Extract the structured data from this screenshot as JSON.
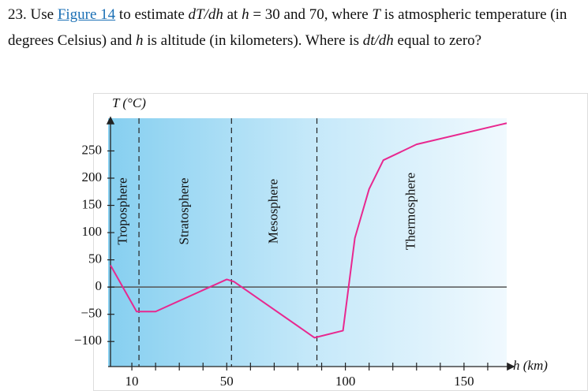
{
  "question": [
    {
      "kind": "text",
      "text": "23. Use "
    },
    {
      "kind": "link",
      "text": "Figure 14"
    },
    {
      "kind": "text",
      "text": " to estimate "
    },
    {
      "kind": "math",
      "text": "dT/dh"
    },
    {
      "kind": "text",
      "text": " at "
    },
    {
      "kind": "math",
      "text": "h"
    },
    {
      "kind": "text",
      "text": " = 30 and 70, where "
    },
    {
      "kind": "math",
      "text": "T"
    },
    {
      "kind": "text",
      "text": " is atmospheric temperature (in degrees Celsius) and "
    },
    {
      "kind": "math",
      "text": "h"
    },
    {
      "kind": "text",
      "text": " is altitude (in kilometers). Where is "
    },
    {
      "kind": "math",
      "text": "dt/dh"
    },
    {
      "kind": "text",
      "text": " equal to zero?"
    }
  ],
  "chart_data": {
    "type": "line",
    "x_label": "h (km)",
    "y_label": "T (°C)",
    "x": [
      1,
      12,
      20,
      50,
      53,
      87,
      99,
      104,
      110,
      116,
      130,
      168
    ],
    "series": [
      {
        "name": "temperature",
        "color": "#e8288f",
        "values": [
          40,
          -45,
          -45,
          14,
          10,
          -93,
          -80,
          90,
          180,
          233,
          262,
          301
        ]
      }
    ],
    "xlim": [
      0,
      168
    ],
    "ylim": [
      -146,
      310
    ],
    "xticks": [
      10,
      50,
      100,
      150
    ],
    "xminor_ticks": [
      20,
      30,
      40,
      60,
      70,
      80,
      90,
      110,
      120,
      130,
      140,
      160
    ],
    "yticks": [
      250,
      200,
      150,
      100,
      50,
      0,
      {
        "value": -50,
        "label": "−50"
      },
      {
        "value": -100,
        "label": "−100"
      }
    ],
    "regions": [
      {
        "name": "Troposphere",
        "range": [
          0,
          13
        ]
      },
      {
        "name": "Stratosphere",
        "range": [
          13,
          52
        ]
      },
      {
        "name": "Mesosphere",
        "range": [
          52,
          88
        ]
      },
      {
        "name": "Thermosphere",
        "range": [
          88,
          168
        ]
      }
    ]
  }
}
